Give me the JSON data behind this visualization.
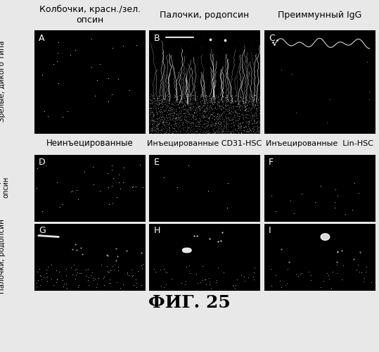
{
  "title": "ФИГ. 25",
  "background_color": "#000000",
  "figure_bg": "#e8e8e8",
  "col_headers": [
    "Колбочки, красн./зел.\nопсин",
    "Палочки, родопсин",
    "Преиммунный IgG"
  ],
  "row1_label": "Зрелые, дикого типа",
  "row2_label_top": "Неинъецированные",
  "row2_label_mid": "Инъецированные CD31-HSC",
  "row2_label_right": "Инъецированные  Lin-HSC",
  "left_label_cones": "Колбочки, красн./зел.\nопсин",
  "left_label_rods": "Палочки, родопсин",
  "panel_bg": "#000000",
  "label_color": "#ffffff",
  "header_fontsize": 9,
  "panel_label_fontsize": 9,
  "title_fontsize": 18,
  "side_label_fontsize": 7.5,
  "col_header_fontsize": 9
}
